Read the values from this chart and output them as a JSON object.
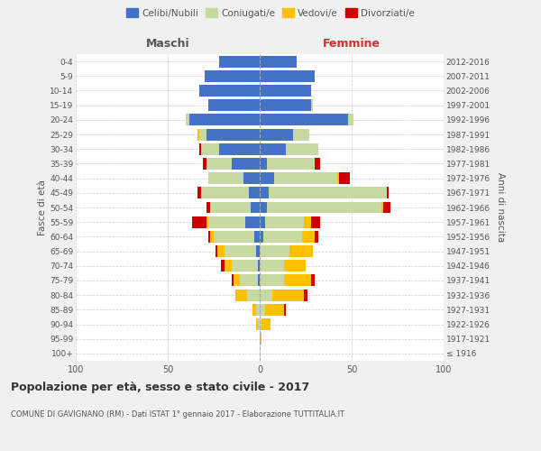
{
  "age_groups": [
    "100+",
    "95-99",
    "90-94",
    "85-89",
    "80-84",
    "75-79",
    "70-74",
    "65-69",
    "60-64",
    "55-59",
    "50-54",
    "45-49",
    "40-44",
    "35-39",
    "30-34",
    "25-29",
    "20-24",
    "15-19",
    "10-14",
    "5-9",
    "0-4"
  ],
  "birth_years": [
    "≤ 1916",
    "1917-1921",
    "1922-1926",
    "1927-1931",
    "1932-1936",
    "1937-1941",
    "1942-1946",
    "1947-1951",
    "1952-1956",
    "1957-1961",
    "1962-1966",
    "1967-1971",
    "1972-1976",
    "1977-1981",
    "1982-1986",
    "1987-1991",
    "1992-1996",
    "1997-2001",
    "2002-2006",
    "2007-2011",
    "2012-2016"
  ],
  "maschi": {
    "celibi": [
      0,
      0,
      0,
      0,
      0,
      1,
      1,
      2,
      3,
      8,
      5,
      6,
      9,
      15,
      22,
      29,
      38,
      28,
      33,
      30,
      22
    ],
    "coniugati": [
      0,
      0,
      1,
      2,
      7,
      10,
      14,
      17,
      22,
      20,
      22,
      26,
      19,
      14,
      10,
      4,
      2,
      0,
      0,
      0,
      0
    ],
    "vedovi": [
      0,
      0,
      1,
      2,
      6,
      3,
      4,
      4,
      2,
      1,
      0,
      0,
      0,
      0,
      0,
      1,
      0,
      0,
      0,
      0,
      0
    ],
    "divorziati": [
      0,
      0,
      0,
      0,
      0,
      1,
      2,
      1,
      1,
      8,
      2,
      2,
      0,
      2,
      1,
      0,
      0,
      0,
      0,
      0,
      0
    ]
  },
  "femmine": {
    "nubili": [
      0,
      0,
      0,
      0,
      0,
      0,
      0,
      0,
      2,
      3,
      4,
      5,
      8,
      4,
      14,
      18,
      48,
      28,
      28,
      30,
      20
    ],
    "coniugate": [
      0,
      0,
      1,
      3,
      7,
      13,
      13,
      16,
      21,
      21,
      62,
      64,
      34,
      26,
      18,
      9,
      3,
      1,
      0,
      0,
      0
    ],
    "vedove": [
      0,
      1,
      5,
      10,
      17,
      15,
      12,
      13,
      7,
      4,
      1,
      0,
      1,
      0,
      0,
      0,
      0,
      0,
      0,
      0,
      0
    ],
    "divorziate": [
      0,
      0,
      0,
      1,
      2,
      2,
      0,
      0,
      2,
      5,
      4,
      1,
      6,
      3,
      0,
      0,
      0,
      0,
      0,
      0,
      0
    ]
  },
  "colors": {
    "celibi_nubili": "#4472c4",
    "coniugati": "#c5d9a0",
    "vedovi": "#ffc000",
    "divorziati": "#cc0000"
  },
  "title": "Popolazione per età, sesso e stato civile - 2017",
  "subtitle": "COMUNE DI GAVIGNANO (RM) - Dati ISTAT 1° gennaio 2017 - Elaborazione TUTTITALIA.IT",
  "ylabel_left": "Fasce di età",
  "ylabel_right": "Anni di nascita",
  "xlabel_left": "Maschi",
  "xlabel_right": "Femmine",
  "xlim": 100,
  "background_color": "#f0f0f0",
  "plot_bg": "#ffffff",
  "legend_labels": [
    "Celibi/Nubili",
    "Coniugati/e",
    "Vedovi/e",
    "Divorziati/e"
  ]
}
